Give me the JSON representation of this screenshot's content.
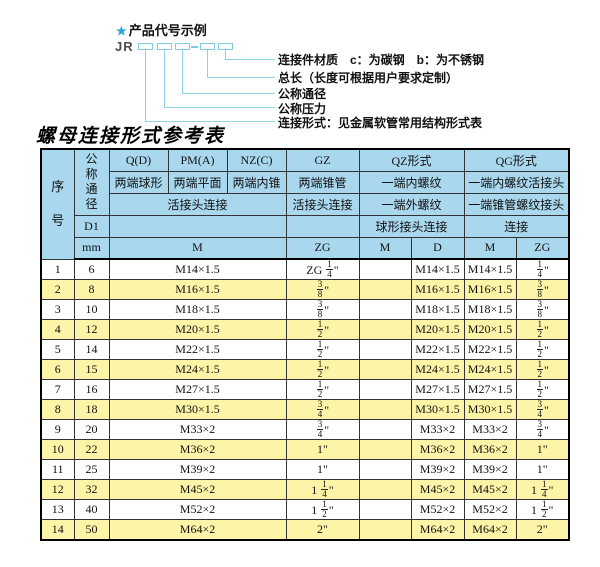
{
  "diagram": {
    "star": "★",
    "title": "产品代号示例",
    "code_prefix": "JR",
    "labels": [
      "连接件材质　c：为碳钢　b：为不锈钢",
      "总长（长度可根据用户要求定制）",
      "公称通径",
      "公称压力",
      "连接形式：见金属软管常用结构形式表"
    ]
  },
  "table": {
    "title": "螺母连接形式参考表",
    "header": {
      "seq": "序号",
      "dn": "公称通径",
      "d1": "D1",
      "unit": "mm",
      "groups": [
        "Q(D)",
        "PM(A)",
        "NZ(C)",
        "GZ",
        "QZ形式",
        "QG形式"
      ],
      "ends": [
        "两端球形",
        "两端平面",
        "两端内锥",
        "两端锥管",
        "一端内螺纹",
        "一端内螺纹活接头"
      ],
      "conn": [
        "活接头连接",
        "活接头连接",
        "一端外螺纹",
        "一端锥管螺纹接头"
      ],
      "conn2": [
        "球形接头连接",
        "连接"
      ],
      "sub": [
        "M",
        "ZG",
        "M",
        "D",
        "M",
        "ZG"
      ]
    },
    "rows": [
      [
        "1",
        "6",
        "M14×1.5",
        "ZG 1/4\"",
        "",
        "M14×1.5",
        "M14×1.5",
        "1/4\""
      ],
      [
        "2",
        "8",
        "M16×1.5",
        "3/8\"",
        "",
        "M16×1.5",
        "M16×1.5",
        "3/8\""
      ],
      [
        "3",
        "10",
        "M18×1.5",
        "3/8\"",
        "",
        "M18×1.5",
        "M18×1.5",
        "3/8\""
      ],
      [
        "4",
        "12",
        "M20×1.5",
        "1/2\"",
        "",
        "M20×1.5",
        "M20×1.5",
        "1/2\""
      ],
      [
        "5",
        "14",
        "M22×1.5",
        "1/2\"",
        "",
        "M22×1.5",
        "M22×1.5",
        "1/2\""
      ],
      [
        "6",
        "15",
        "M24×1.5",
        "1/2\"",
        "",
        "M24×1.5",
        "M24×1.5",
        "1/2\""
      ],
      [
        "7",
        "16",
        "M27×1.5",
        "1/2\"",
        "",
        "M27×1.5",
        "M27×1.5",
        "1/2\""
      ],
      [
        "8",
        "18",
        "M30×1.5",
        "3/4\"",
        "",
        "M30×1.5",
        "M30×1.5",
        "3/4\""
      ],
      [
        "9",
        "20",
        "M33×2",
        "3/4\"",
        "",
        "M33×2",
        "M33×2",
        "3/4\""
      ],
      [
        "10",
        "22",
        "M36×2",
        "1\"",
        "",
        "M36×2",
        "M36×2",
        "1\""
      ],
      [
        "11",
        "25",
        "M39×2",
        "1\"",
        "",
        "M39×2",
        "M39×2",
        "1\""
      ],
      [
        "12",
        "32",
        "M45×2",
        "1 1/4\"",
        "",
        "M45×2",
        "M45×2",
        "1 1/4\""
      ],
      [
        "13",
        "40",
        "M52×2",
        "1 1/2\"",
        "",
        "M52×2",
        "M52×2",
        "1 1/2\""
      ],
      [
        "14",
        "50",
        "M64×2",
        "2\"",
        "",
        "M64×2",
        "M64×2",
        "2\""
      ]
    ]
  },
  "colors": {
    "header_bg": "#a9d7ee",
    "row_alt_bg": "#fcf4a6",
    "line_cyan": "#8ed3e6",
    "star_blue": "#2aa5d6",
    "border_dark": "#000000"
  }
}
